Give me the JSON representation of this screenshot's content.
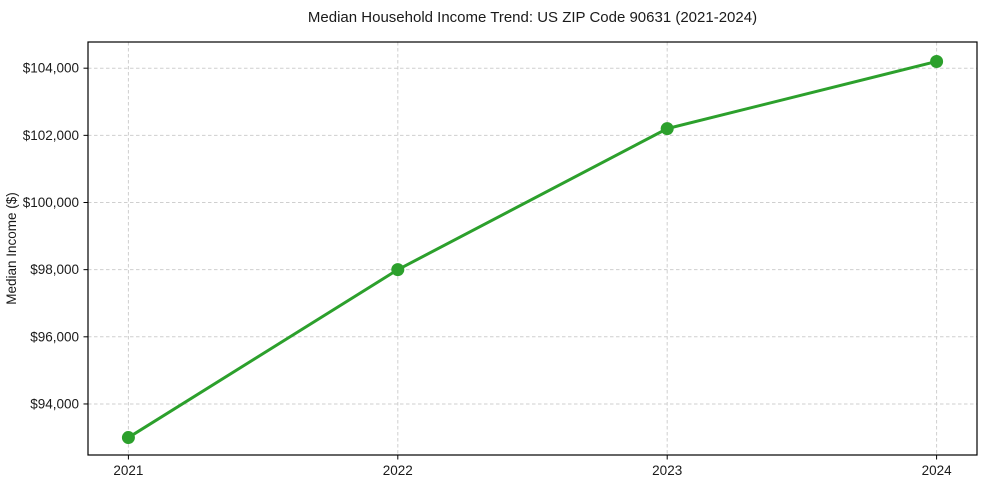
{
  "chart_data": {
    "type": "line",
    "title": "Median Household Income Trend: US ZIP Code 90631 (2021-2024)",
    "xlabel": "",
    "ylabel": "Median Income ($)",
    "series_name": "Median Household Income",
    "x": [
      2021,
      2022,
      2023,
      2024
    ],
    "values": [
      93000,
      98000,
      102200,
      104200
    ],
    "xtick_labels": [
      "2021",
      "2022",
      "2023",
      "2024"
    ],
    "yticks": [
      94000,
      96000,
      98000,
      100000,
      102000,
      104000
    ],
    "ytick_labels": [
      "$94,000",
      "$96,000",
      "$98,000",
      "$100,000",
      "$102,000",
      "$104,000"
    ],
    "xlim": [
      2020.85,
      2024.15
    ],
    "ylim": [
      92480,
      104780
    ],
    "grid": true,
    "grid_style": "dashed",
    "legend": "none",
    "marker": "circle",
    "colors": {
      "line": "#2ca02c",
      "marker": "#2ca02c",
      "grid": "#cfcfcf",
      "spine": "#000000",
      "text": "#1a1a1a",
      "background": "#ffffff"
    }
  }
}
